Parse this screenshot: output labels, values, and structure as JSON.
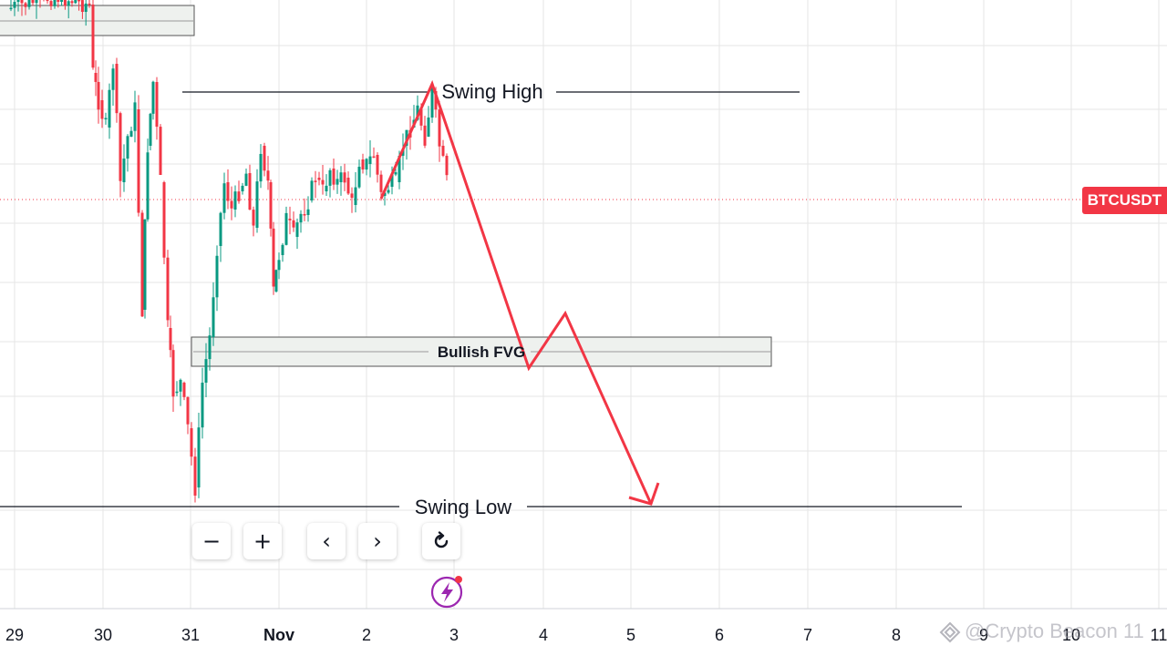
{
  "chart_data": {
    "type": "candlestick",
    "symbol": "BTCUSDT",
    "x_ticks": [
      "29",
      "30",
      "31",
      "Nov",
      "2",
      "3",
      "4",
      "5",
      "6",
      "7",
      "8",
      "9",
      "10",
      "11"
    ],
    "annotations": {
      "swing_high": "Swing High",
      "swing_low": "Swing Low",
      "fvg": "Bullish FVG"
    },
    "colors": {
      "up": "#089981",
      "down": "#f23645",
      "arrow": "#f23645",
      "grid": "#e6e6e6",
      "line": "#131722"
    },
    "grid": true
  },
  "toolbar": {
    "zoom_out": "−",
    "zoom_in": "+",
    "scroll_left": "‹",
    "scroll_right": "›",
    "reset_icon": "reset-icon"
  },
  "watermark": {
    "text": "@Crypto Beacon 11"
  }
}
